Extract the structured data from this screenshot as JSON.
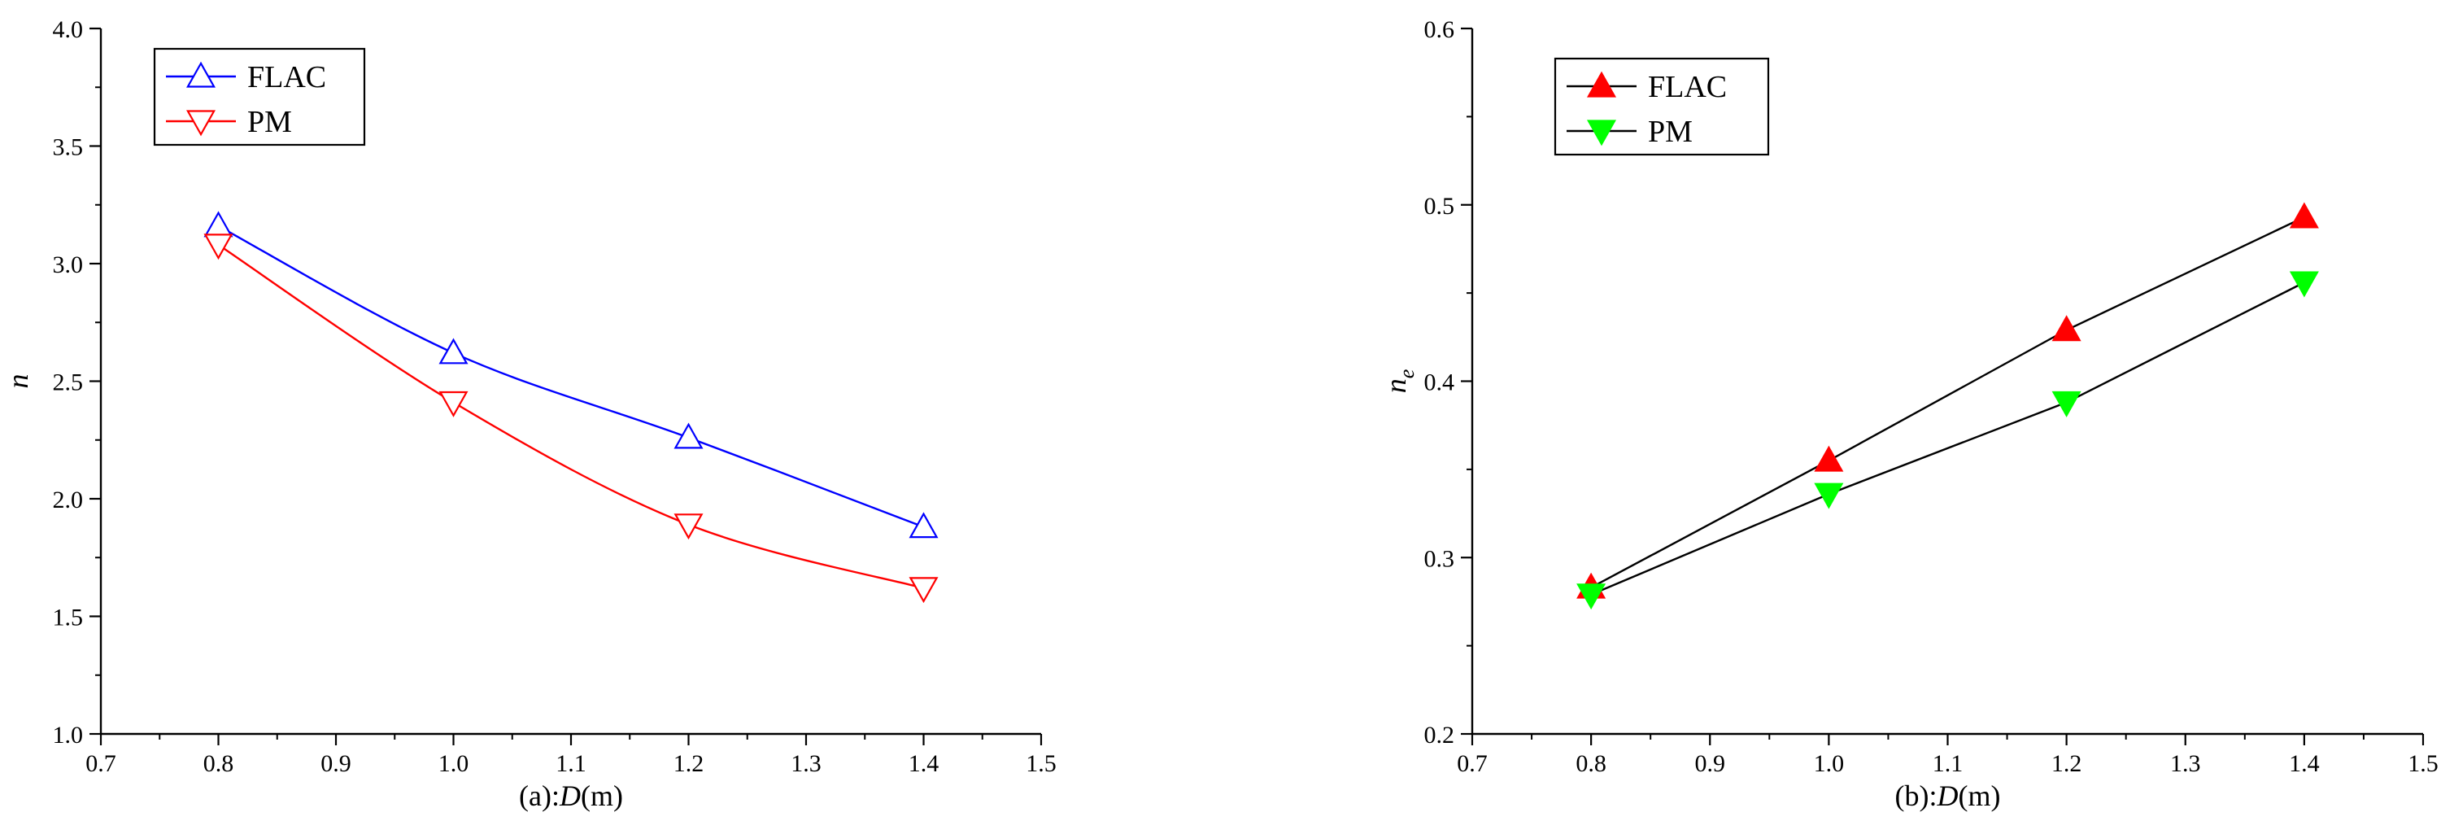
{
  "chart_data": [
    {
      "type": "line",
      "panel": "a",
      "xlabel_prefix": "(a):",
      "xlabel_var": "D",
      "xlabel_unit": "(m)",
      "ylabel": "n",
      "ylabel_sub": "",
      "xlim": [
        0.7,
        1.5
      ],
      "ylim": [
        1.0,
        4.0
      ],
      "xticks": [
        "0.7",
        "0.8",
        "0.9",
        "1.0",
        "1.1",
        "1.2",
        "1.3",
        "1.4",
        "1.5"
      ],
      "yticks": [
        "1.0",
        "1.5",
        "2.0",
        "2.5",
        "3.0",
        "3.5",
        "4.0"
      ],
      "grid": false,
      "legend_position": "top-left",
      "series": [
        {
          "name": "FLAC",
          "x": [
            0.8,
            1.0,
            1.2,
            1.4
          ],
          "values": [
            3.16,
            2.62,
            2.26,
            1.88
          ],
          "color": "#0000ff",
          "marker": "triangle-up-open",
          "curve": "smooth"
        },
        {
          "name": "PM",
          "x": [
            0.8,
            1.0,
            1.2,
            1.4
          ],
          "values": [
            3.08,
            2.41,
            1.89,
            1.62
          ],
          "color": "#ff0000",
          "marker": "triangle-down-open",
          "curve": "smooth"
        }
      ]
    },
    {
      "type": "line",
      "panel": "b",
      "xlabel_prefix": "(b):",
      "xlabel_var": "D",
      "xlabel_unit": "(m)",
      "ylabel": "n",
      "ylabel_sub": "e",
      "xlim": [
        0.7,
        1.5
      ],
      "ylim": [
        0.2,
        0.6
      ],
      "xticks": [
        "0.7",
        "0.8",
        "0.9",
        "1.0",
        "1.1",
        "1.2",
        "1.3",
        "1.4",
        "1.5"
      ],
      "yticks": [
        "0.2",
        "0.3",
        "0.4",
        "0.5",
        "0.6"
      ],
      "grid": false,
      "legend_position": "top-left",
      "series": [
        {
          "name": "FLAC",
          "x": [
            0.8,
            1.0,
            1.2,
            1.4
          ],
          "values": [
            0.283,
            0.355,
            0.429,
            0.493
          ],
          "color": "#000000",
          "marker_color": "#ff0000",
          "marker": "triangle-up-filled",
          "curve": "linear"
        },
        {
          "name": "PM",
          "x": [
            0.8,
            1.0,
            1.2,
            1.4
          ],
          "values": [
            0.279,
            0.336,
            0.388,
            0.456
          ],
          "color": "#000000",
          "marker_color": "#00ff00",
          "marker": "triangle-down-filled",
          "curve": "linear"
        }
      ]
    }
  ]
}
